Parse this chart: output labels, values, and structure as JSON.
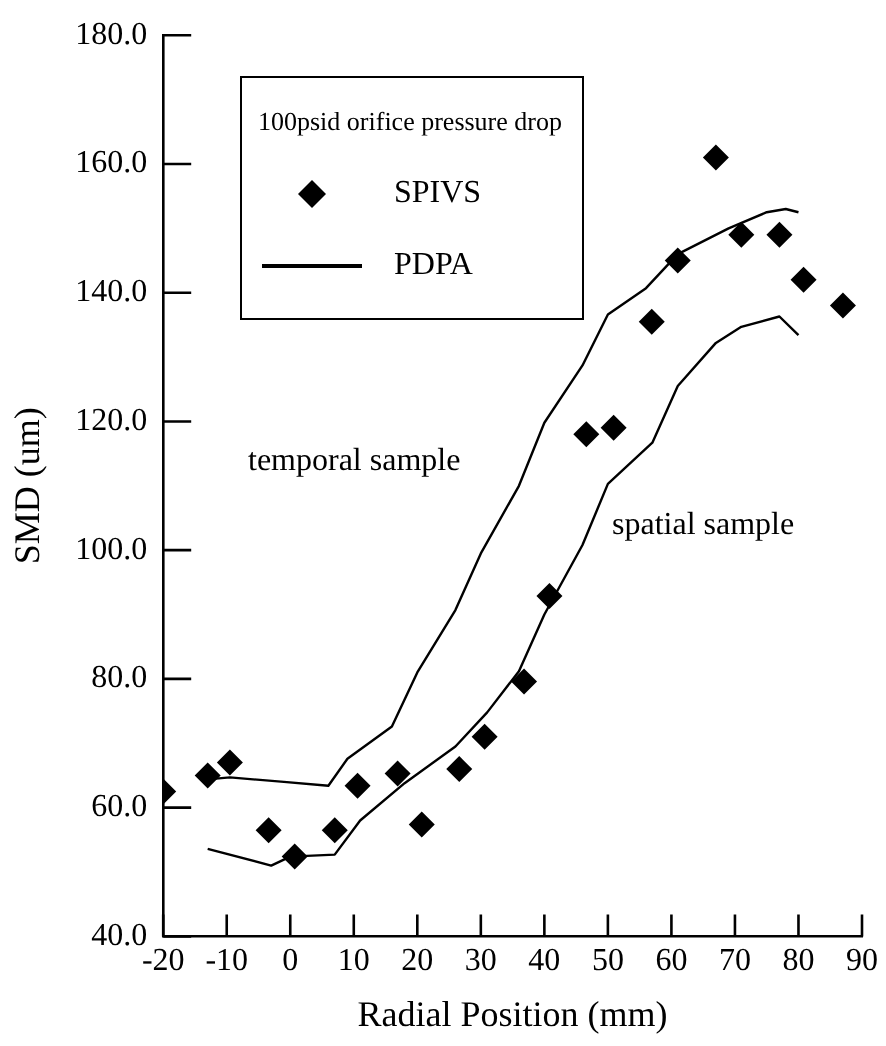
{
  "chart_data": {
    "type": "scatter",
    "xlabel": "Radial Position (mm)",
    "ylabel": "SMD (um)",
    "legend_title": "100psid orifice pressure drop",
    "legend": "top left",
    "grid": false,
    "xlim": [
      -20,
      90
    ],
    "xticks": [
      -20,
      -10,
      0,
      10,
      20,
      30,
      40,
      50,
      60,
      70,
      80,
      90
    ],
    "ylim": [
      40,
      180
    ],
    "yticks": [
      {
        "value": 40,
        "label": "40.0"
      },
      {
        "value": 60,
        "label": "60.0"
      },
      {
        "value": 80,
        "label": "80.0"
      },
      {
        "value": 100,
        "label": "100.0"
      },
      {
        "value": 120,
        "label": "120.0"
      },
      {
        "value": 140,
        "label": "140.0"
      },
      {
        "value": 160,
        "label": "160.0"
      },
      {
        "value": 180,
        "label": "180.0"
      }
    ],
    "annotations": [
      "temporal sample",
      "spatial sample"
    ],
    "series": [
      {
        "name": "SPIVS",
        "marker": "diamond",
        "color": "#000000",
        "x": [
          -20,
          -13,
          -9.5,
          -3.4,
          0.7,
          7,
          10.6,
          16.9,
          20.7,
          26.6,
          30.6,
          36.8,
          40.8,
          46.6,
          50.9,
          56.9,
          61,
          67,
          71,
          77,
          80.8,
          87
        ],
        "values": [
          62.5,
          65,
          67,
          56.5,
          52.4,
          56.5,
          63.4,
          65.3,
          57.4,
          66,
          71,
          79.6,
          92.9,
          118,
          119,
          135.5,
          145,
          161,
          149,
          149,
          142,
          138
        ]
      },
      {
        "name": "PDPA",
        "type": "line",
        "marker": "none",
        "color": "#000000",
        "x": [
          -13,
          -9.5,
          -1,
          6,
          9,
          16,
          20,
          26,
          30,
          36,
          40,
          46,
          50,
          56,
          61,
          69,
          75,
          78,
          80
        ],
        "values": [
          64.4,
          64.7,
          64,
          63.4,
          67.6,
          72.6,
          81,
          90.7,
          99.5,
          110,
          119.8,
          128.7,
          136.6,
          140.7,
          146,
          150,
          152.5,
          153,
          152.5
        ]
      },
      {
        "type": "line",
        "marker": "none",
        "color": "#000000",
        "x": [
          -13,
          -3,
          0,
          7,
          11,
          18,
          26,
          31,
          36,
          40,
          46,
          50,
          57,
          61,
          67,
          71,
          77,
          80
        ],
        "values": [
          53.6,
          51,
          52.4,
          52.7,
          58,
          63.8,
          69.5,
          74.8,
          81.2,
          90,
          100.8,
          110.3,
          116.7,
          125.5,
          132.2,
          134.7,
          136.3,
          133.4
        ]
      }
    ]
  }
}
